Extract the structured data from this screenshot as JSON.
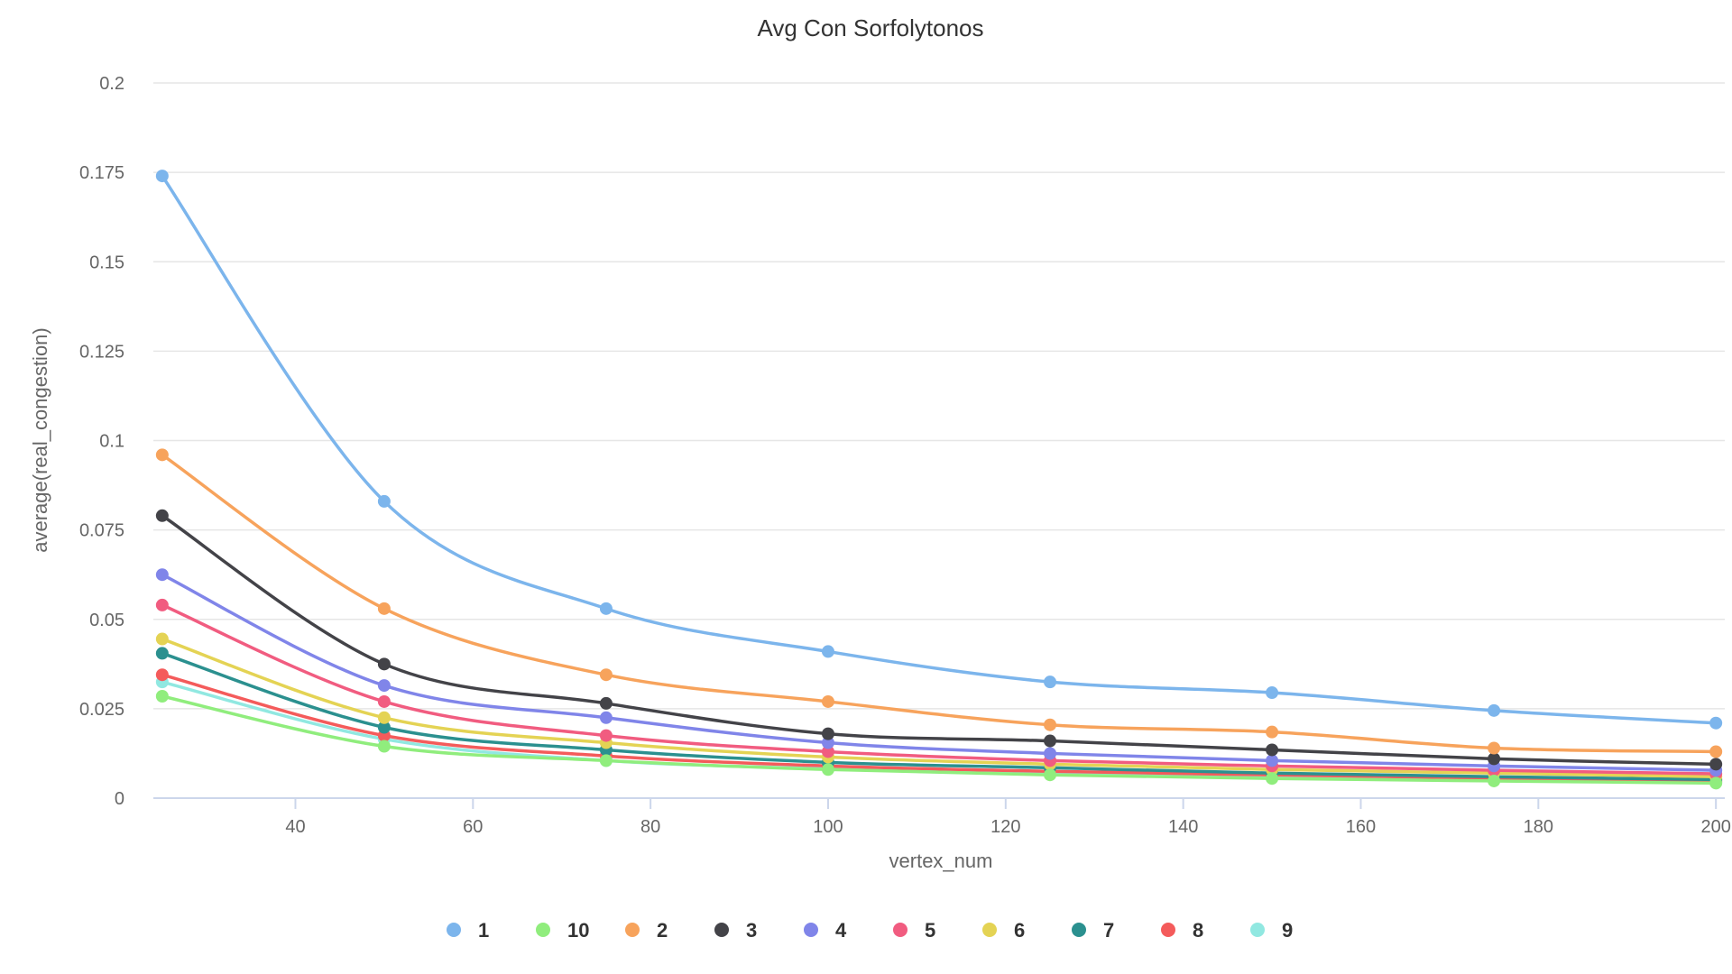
{
  "chart_data": {
    "type": "line",
    "title": "Avg Con Sorfolytonos",
    "xlabel": "vertex_num",
    "ylabel": "average(real_congestion)",
    "xlim": [
      24,
      201
    ],
    "ylim": [
      0,
      0.2
    ],
    "xticks": [
      40,
      60,
      80,
      100,
      120,
      140,
      160,
      180,
      200
    ],
    "xtick_labels": [
      "40",
      "60",
      "80",
      "100",
      "120",
      "140",
      "160",
      "180",
      "200"
    ],
    "yticks": [
      0,
      0.025,
      0.05,
      0.075,
      0.1,
      0.125,
      0.15,
      0.175,
      0.2
    ],
    "ytick_labels": [
      "0",
      "0.025",
      "0.05",
      "0.075",
      "0.1",
      "0.125",
      "0.15",
      "0.175",
      "0.2"
    ],
    "grid": true,
    "legend_position": "bottom",
    "x": [
      25,
      50,
      75,
      100,
      125,
      150,
      175,
      200
    ],
    "series": [
      {
        "name": "1",
        "color": "#7cb5ec",
        "values": [
          0.174,
          0.083,
          0.053,
          0.041,
          0.0325,
          0.0295,
          0.0245,
          0.021
        ]
      },
      {
        "name": "10",
        "color": "#90ed7d",
        "values": [
          0.0285,
          0.0145,
          0.0105,
          0.008,
          0.0065,
          0.0055,
          0.0048,
          0.0042
        ]
      },
      {
        "name": "2",
        "color": "#f7a35c",
        "values": [
          0.096,
          0.053,
          0.0345,
          0.027,
          0.0205,
          0.0185,
          0.014,
          0.013
        ]
      },
      {
        "name": "3",
        "color": "#434348",
        "values": [
          0.079,
          0.0375,
          0.0265,
          0.018,
          0.016,
          0.0135,
          0.011,
          0.0095
        ]
      },
      {
        "name": "4",
        "color": "#8085e9",
        "values": [
          0.0625,
          0.0315,
          0.0225,
          0.0155,
          0.0125,
          0.0105,
          0.009,
          0.0078
        ]
      },
      {
        "name": "5",
        "color": "#f15c80",
        "values": [
          0.054,
          0.027,
          0.0175,
          0.013,
          0.0105,
          0.009,
          0.0078,
          0.0068
        ]
      },
      {
        "name": "6",
        "color": "#e4d354",
        "values": [
          0.0445,
          0.0225,
          0.0155,
          0.0115,
          0.0095,
          0.008,
          0.007,
          0.006
        ]
      },
      {
        "name": "7",
        "color": "#2b908f",
        "values": [
          0.0405,
          0.0198,
          0.0135,
          0.01,
          0.0085,
          0.007,
          0.006,
          0.0052
        ]
      },
      {
        "name": "8",
        "color": "#f45b5b",
        "values": [
          0.0345,
          0.0175,
          0.0118,
          0.009,
          0.0075,
          0.0065,
          0.0056,
          0.0048
        ]
      },
      {
        "name": "9",
        "color": "#91e8e1",
        "values": [
          0.0325,
          0.0165,
          0.0105,
          0.0082,
          0.0068,
          0.0058,
          0.005,
          0.0044
        ]
      }
    ]
  }
}
